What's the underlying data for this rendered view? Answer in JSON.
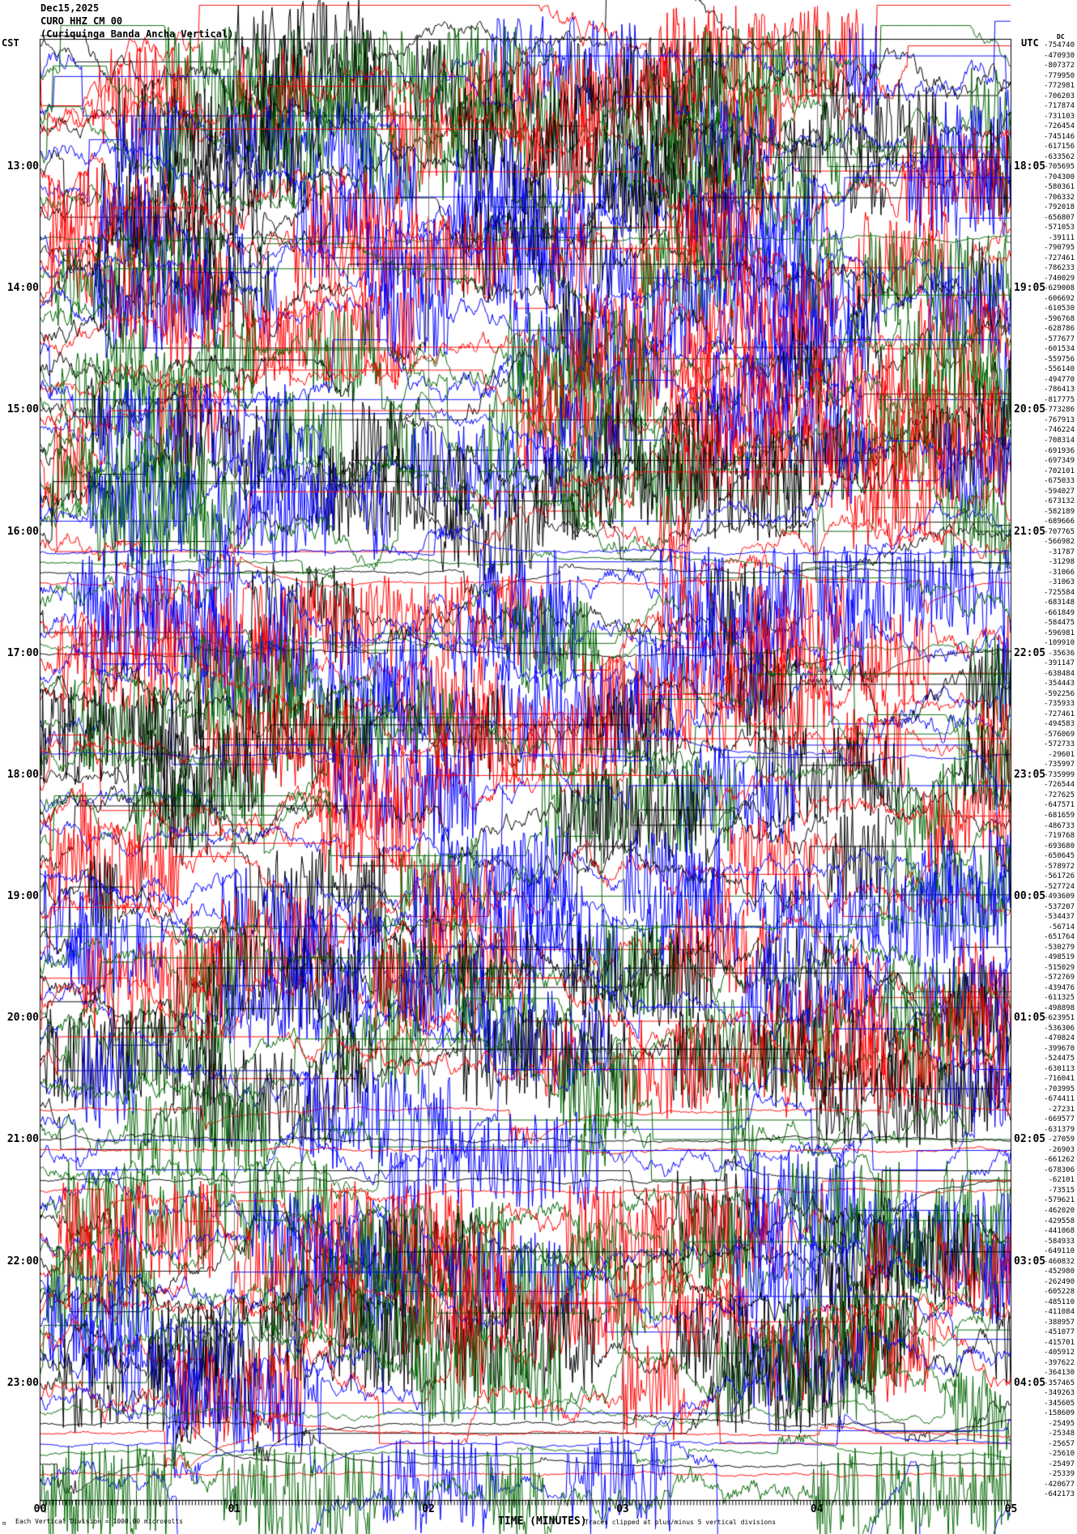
{
  "header": {
    "date": "Dec15,2025",
    "station": "CURO HHZ CM 00",
    "description": "(Curiquinga Banda Ancha Vertical)",
    "left_timezone": "CST",
    "right_timezone": "UTC",
    "dc_label": "DC"
  },
  "footer": {
    "scale_note": "Each Vertical Division = 1000.00 microvolts",
    "clip_note": "Traces clipped at plus/minus 5 vertical divisions",
    "pen_mark": "m"
  },
  "x_axis": {
    "title": "TIME (MINUTES)",
    "ticks": [
      "00",
      "01",
      "02",
      "03",
      "04",
      "05"
    ]
  },
  "chart_data": {
    "type": "line",
    "subtype": "helicorder-seismogram",
    "title": "CURO HHZ CM 00 (Curiquinga Banda Ancha Vertical) Dec15,2025",
    "xlabel": "TIME (MINUTES)",
    "x_ticks": [
      "00",
      "01",
      "02",
      "03",
      "04",
      "05"
    ],
    "x_range_minutes": [
      0,
      5
    ],
    "minutes_per_row": 5,
    "rows_total": 144,
    "trace_color_cycle": [
      "#000000",
      "#ff0000",
      "#0000ff",
      "#006600"
    ],
    "grid_color": "#808080",
    "scale_note": "Each Vertical Division = 1000.00 microvolts",
    "clip_note": "Traces clipped at plus/minus 5 vertical divisions",
    "dc_offsets": [
      -754740,
      -470930,
      -807372,
      -779950,
      -772981,
      -706203,
      -717874,
      -731103,
      -726454,
      -745146,
      -617156,
      -633562,
      -705695,
      -704300,
      -580361,
      -706332,
      -792018,
      -656807,
      -571053,
      -39111,
      -790795,
      -727461,
      -786233,
      -740029,
      -629008,
      -606692,
      -610530,
      -596768,
      -628786,
      -577677,
      -601534,
      -559756,
      -556140,
      -494770,
      -786413,
      -817775,
      -773286,
      -767913,
      -746224,
      -708314,
      -691936,
      -697349,
      -702101,
      -675033,
      -594027,
      -673132,
      -582189,
      -689666,
      -707765,
      -566982,
      -31787,
      -31298,
      -31066,
      -31063,
      -725584,
      -683148,
      -661849,
      -584475,
      -596981,
      -109910,
      -35636,
      -391147,
      -638484,
      -354443,
      -592256,
      -735933,
      -727461,
      -494583,
      -576069,
      -572733,
      -29601,
      -735997,
      -735999,
      -726544,
      -727625,
      -647571,
      -681659,
      -486733,
      -719768,
      -693680,
      -650645,
      -578972,
      -561726,
      -527724,
      -493609,
      -537207,
      -534437,
      -56714,
      -651764,
      -530279,
      -498519,
      -515029,
      -572769,
      -439476,
      -611325,
      -498898,
      -623951,
      -536306,
      -470824,
      -399670,
      -524475,
      -630113,
      -716041,
      -703995,
      -674411,
      -27231,
      -669577,
      -631379,
      -27059,
      -26903,
      -661262,
      -678306,
      -62101,
      -73515,
      -579621,
      -462020,
      -429558,
      -441068,
      -584933,
      -649110,
      -460832,
      -452980,
      -262490,
      -605228,
      -485110,
      -411084,
      -388957,
      -451077,
      -415701,
      -405912,
      -397622,
      -364130,
      -357465,
      -349263,
      -345605,
      -158609,
      -25495,
      -25348,
      -25657,
      -25610,
      -25497,
      -25339,
      -420677,
      -642173
    ],
    "hour_marks": [
      {
        "row": 12,
        "cst": "13:00",
        "utc": "18:05"
      },
      {
        "row": 24,
        "cst": "14:00",
        "utc": "19:05"
      },
      {
        "row": 36,
        "cst": "15:00",
        "utc": "20:05"
      },
      {
        "row": 48,
        "cst": "16:00",
        "utc": "21:05"
      },
      {
        "row": 60,
        "cst": "17:00",
        "utc": "22:05"
      },
      {
        "row": 72,
        "cst": "18:00",
        "utc": "23:05"
      },
      {
        "row": 84,
        "cst": "19:00",
        "utc": "00:05"
      },
      {
        "row": 96,
        "cst": "20:00",
        "utc": "01:05"
      },
      {
        "row": 108,
        "cst": "21:00",
        "utc": "02:05"
      },
      {
        "row": 120,
        "cst": "22:00",
        "utc": "03:05"
      },
      {
        "row": 132,
        "cst": "23:00",
        "utc": "04:05"
      }
    ]
  }
}
